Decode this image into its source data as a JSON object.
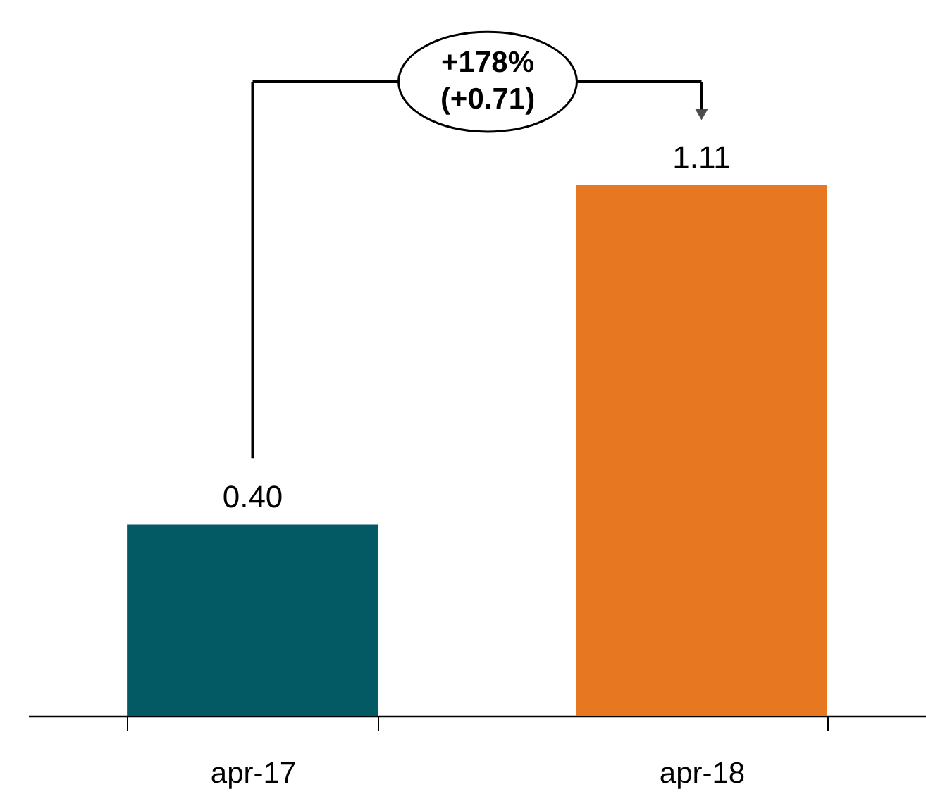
{
  "chart_data": {
    "type": "bar",
    "categories": [
      "apr-17",
      "apr-18"
    ],
    "values": [
      0.4,
      1.11
    ],
    "colors": [
      "#045a64",
      "#e87722"
    ],
    "value_labels": [
      "0.40",
      "1.11"
    ],
    "annotations": [
      "+178%\n(+0.71)"
    ]
  }
}
